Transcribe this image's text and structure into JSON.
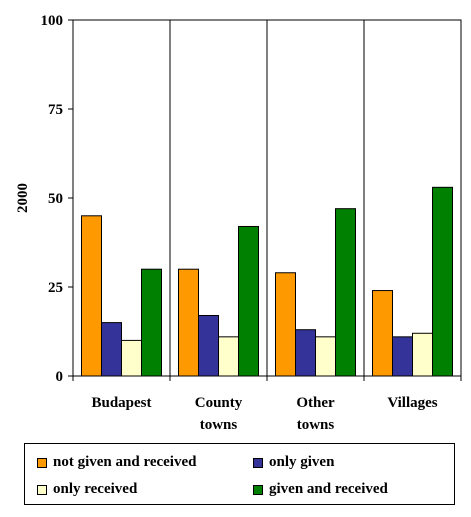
{
  "chart_data": {
    "type": "bar",
    "title": "",
    "xlabel": "",
    "ylabel": "2000",
    "ylim": [
      0,
      100
    ],
    "yticks": [
      0,
      25,
      50,
      75,
      100
    ],
    "categories": [
      [
        "Budapest"
      ],
      [
        "County",
        "towns"
      ],
      [
        "Other",
        "towns"
      ],
      [
        "Villages"
      ]
    ],
    "series": [
      {
        "name": "not given and received",
        "color": "#FF9900",
        "values": [
          45,
          30,
          29,
          24
        ]
      },
      {
        "name": "only given",
        "color": "#333399",
        "values": [
          15,
          17,
          13,
          11
        ]
      },
      {
        "name": "only received",
        "color": "#FFFFCC",
        "values": [
          10,
          11,
          11,
          12
        ]
      },
      {
        "name": "given and received",
        "color": "#008000",
        "values": [
          30,
          42,
          47,
          53
        ]
      }
    ],
    "grid": false,
    "legend_position": "bottom"
  }
}
